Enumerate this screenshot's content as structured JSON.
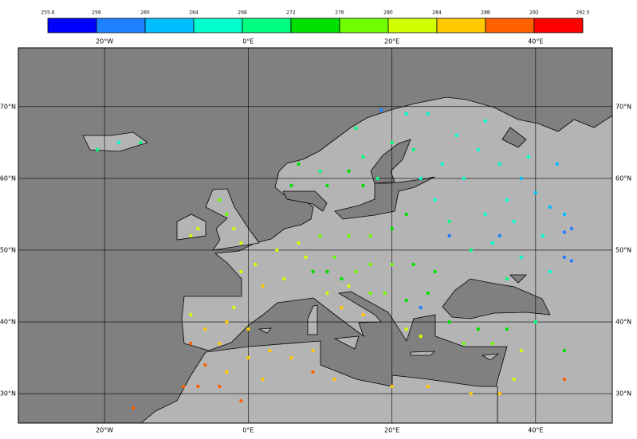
{
  "colorbar": {
    "ticks": [
      255.6,
      256,
      260,
      264,
      268,
      272,
      276,
      280,
      284,
      288,
      292,
      292.5
    ],
    "colors": [
      "#0000ff",
      "#1e80ff",
      "#00bfff",
      "#00ffcc",
      "#00ff80",
      "#00e000",
      "#70ff00",
      "#d0ff00",
      "#ffc800",
      "#ff6000",
      "#ff0000"
    ]
  },
  "map": {
    "lonlim": [
      -32,
      50.67
    ],
    "latlim": [
      25.9,
      78.2
    ],
    "lon_ticks": [
      {
        "value": -20,
        "label": "20°W"
      },
      {
        "value": 0,
        "label": "0°E"
      },
      {
        "value": 20,
        "label": "20°E"
      },
      {
        "value": 40,
        "label": "40°E"
      }
    ],
    "lat_ticks": [
      {
        "value": 70,
        "label": "70°N"
      },
      {
        "value": 60,
        "label": "60°N"
      },
      {
        "value": 50,
        "label": "50°N"
      },
      {
        "value": 40,
        "label": "40°N"
      },
      {
        "value": 30,
        "label": "30°N"
      }
    ],
    "stations": [
      [
        32,
        64,
        266
      ],
      [
        35,
        62,
        265
      ],
      [
        38,
        60,
        263
      ],
      [
        40,
        58,
        263
      ],
      [
        42,
        56,
        262
      ],
      [
        44,
        55,
        261
      ],
      [
        45,
        53,
        258
      ],
      [
        36,
        57,
        264
      ],
      [
        33,
        55,
        265
      ],
      [
        39,
        63,
        264
      ],
      [
        43,
        62,
        263
      ],
      [
        30,
        60,
        266
      ],
      [
        37,
        54,
        264
      ],
      [
        41,
        52,
        265
      ],
      [
        44,
        49,
        259
      ],
      [
        34,
        51,
        266
      ],
      [
        38,
        49,
        266
      ],
      [
        42,
        47,
        265
      ],
      [
        36,
        46,
        268
      ],
      [
        31,
        50,
        268
      ],
      [
        28,
        54,
        268
      ],
      [
        26,
        57,
        267
      ],
      [
        24,
        60,
        266
      ],
      [
        27,
        62,
        266
      ],
      [
        29,
        66,
        265
      ],
      [
        33,
        68,
        264
      ],
      [
        25,
        69,
        265
      ],
      [
        22,
        69,
        266
      ],
      [
        18.5,
        69.5,
        258
      ],
      [
        15,
        67,
        270
      ],
      [
        20,
        65,
        268
      ],
      [
        23,
        64,
        268
      ],
      [
        16,
        63,
        271
      ],
      [
        14,
        61,
        273
      ],
      [
        10,
        61,
        270
      ],
      [
        7,
        62,
        272
      ],
      [
        6,
        59,
        273
      ],
      [
        11,
        59,
        272
      ],
      [
        16,
        59,
        272
      ],
      [
        18,
        60,
        270
      ],
      [
        22,
        55,
        272
      ],
      [
        20,
        53,
        274
      ],
      [
        17,
        52,
        276
      ],
      [
        14,
        52,
        278
      ],
      [
        10,
        52,
        279
      ],
      [
        7,
        51,
        280
      ],
      [
        4,
        50,
        281
      ],
      [
        1,
        48,
        283
      ],
      [
        -1,
        47,
        283
      ],
      [
        2,
        45,
        284
      ],
      [
        5,
        46,
        281
      ],
      [
        9,
        47,
        274
      ],
      [
        11,
        47,
        273
      ],
      [
        13,
        46,
        275
      ],
      [
        15,
        47,
        276
      ],
      [
        8,
        49,
        280
      ],
      [
        12,
        49,
        278
      ],
      [
        17,
        48,
        277
      ],
      [
        20,
        48,
        276
      ],
      [
        23,
        48,
        274
      ],
      [
        26,
        47,
        272
      ],
      [
        25,
        44,
        273
      ],
      [
        22,
        43,
        275
      ],
      [
        19,
        44,
        276
      ],
      [
        17,
        44,
        279
      ],
      [
        14,
        45,
        281
      ],
      [
        11,
        44,
        282
      ],
      [
        13,
        42,
        284
      ],
      [
        16,
        41,
        284
      ],
      [
        22,
        39,
        282
      ],
      [
        24,
        38,
        283
      ],
      [
        28,
        40,
        274
      ],
      [
        32,
        39,
        272
      ],
      [
        36,
        39,
        272
      ],
      [
        40,
        40,
        270
      ],
      [
        30,
        37,
        276
      ],
      [
        34,
        37,
        278
      ],
      [
        38,
        36,
        281
      ],
      [
        44,
        36,
        275
      ],
      [
        -3,
        40,
        284
      ],
      [
        -6,
        39,
        285
      ],
      [
        -8,
        41,
        283
      ],
      [
        -4,
        37,
        286
      ],
      [
        0,
        39,
        285
      ],
      [
        -2,
        42,
        283
      ],
      [
        -8,
        37,
        288
      ],
      [
        -6,
        34,
        288
      ],
      [
        -3,
        33,
        287
      ],
      [
        0,
        35,
        287
      ],
      [
        3,
        36,
        286
      ],
      [
        6,
        35,
        287
      ],
      [
        9,
        36,
        286
      ],
      [
        9,
        33,
        288
      ],
      [
        2,
        32,
        286
      ],
      [
        -4,
        31,
        288
      ],
      [
        -1,
        29,
        289
      ],
      [
        -7,
        31,
        290
      ],
      [
        -9,
        31,
        289
      ],
      [
        12,
        32,
        287
      ],
      [
        20,
        31,
        285
      ],
      [
        25,
        31,
        287
      ],
      [
        31,
        30,
        285
      ],
      [
        35,
        30,
        287
      ],
      [
        37,
        32,
        283
      ],
      [
        44,
        32,
        291
      ],
      [
        -16,
        28,
        289
      ],
      [
        -2,
        53,
        281
      ],
      [
        -1,
        51,
        282
      ],
      [
        -3,
        55,
        279
      ],
      [
        -4,
        57,
        276
      ],
      [
        -7,
        53,
        282
      ],
      [
        -8,
        52,
        282
      ],
      [
        -21,
        64,
        270
      ],
      [
        -18,
        65,
        266
      ],
      [
        -15,
        65,
        268
      ],
      [
        28,
        52,
        258
      ],
      [
        35,
        52,
        259
      ],
      [
        44,
        52.5,
        259
      ],
      [
        45,
        48.5,
        258
      ],
      [
        24,
        42,
        259
      ]
    ]
  }
}
